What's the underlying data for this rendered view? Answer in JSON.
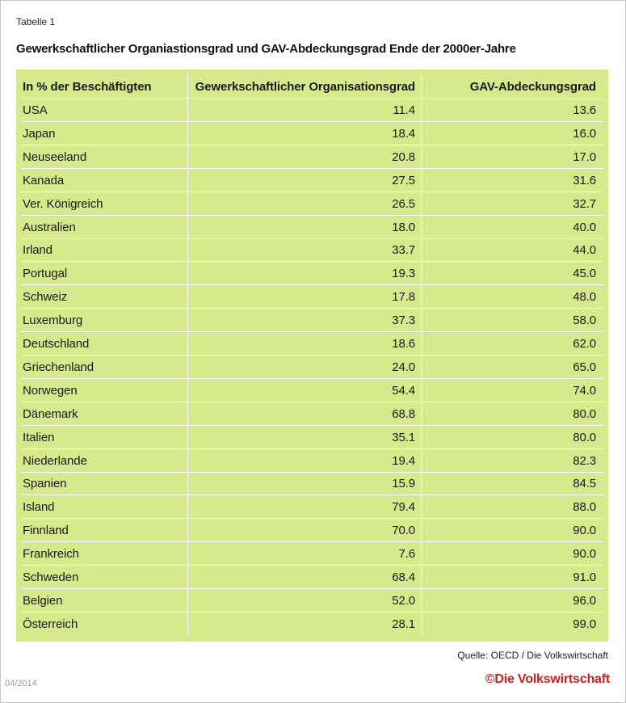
{
  "label": "Tabelle 1",
  "title": "Gewerkschaftlicher Organiastionsgrad und GAV-Abdeckungsgrad Ende der 2000er-Jahre",
  "source": "Quelle: OECD / Die Volkswirtschaft",
  "date": "04/2014",
  "brand": "©Die Volkswirtschaft",
  "colors": {
    "table_bg": "#d6e98c",
    "brand": "#cc1f1f"
  },
  "chart_data": {
    "type": "table",
    "columns": [
      "In % der Beschäftigten",
      "Gewerkschaftlicher Organisationsgrad",
      "GAV-Abdeckungsgrad"
    ],
    "rows": [
      [
        "USA",
        "11.4",
        "13.6"
      ],
      [
        "Japan",
        "18.4",
        "16.0"
      ],
      [
        "Neuseeland",
        "20.8",
        "17.0"
      ],
      [
        "Kanada",
        "27.5",
        "31.6"
      ],
      [
        "Ver. Königreich",
        "26.5",
        "32.7"
      ],
      [
        "Australien",
        "18.0",
        "40.0"
      ],
      [
        "Irland",
        "33.7",
        "44.0"
      ],
      [
        "Portugal",
        "19.3",
        "45.0"
      ],
      [
        "Schweiz",
        "17.8",
        "48.0"
      ],
      [
        "Luxemburg",
        "37.3",
        "58.0"
      ],
      [
        "Deutschland",
        "18.6",
        "62.0"
      ],
      [
        "Griechenland",
        "24.0",
        "65.0"
      ],
      [
        "Norwegen",
        "54.4",
        "74.0"
      ],
      [
        "Dänemark",
        "68.8",
        "80.0"
      ],
      [
        "Italien",
        "35.1",
        "80.0"
      ],
      [
        "Niederlande",
        "19.4",
        "82.3"
      ],
      [
        "Spanien",
        "15.9",
        "84.5"
      ],
      [
        "Island",
        "79.4",
        "88.0"
      ],
      [
        "Finnland",
        "70.0",
        "90.0"
      ],
      [
        "Frankreich",
        "7.6",
        "90.0"
      ],
      [
        "Schweden",
        "68.4",
        "91.0"
      ],
      [
        "Belgien",
        "52.0",
        "96.0"
      ],
      [
        "Österreich",
        "28.1",
        "99.0"
      ]
    ]
  }
}
